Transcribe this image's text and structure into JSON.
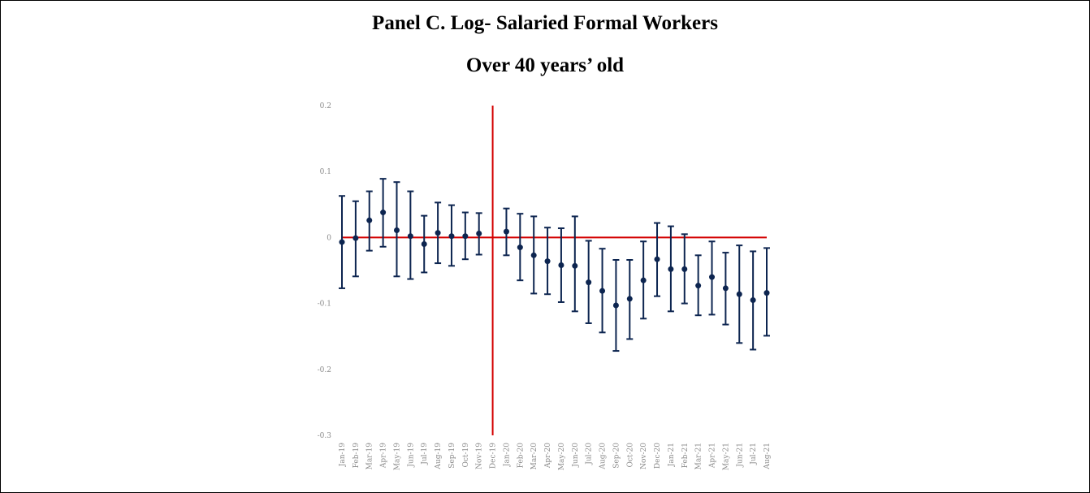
{
  "chart_data": {
    "type": "errorbar",
    "title": "Panel C. Log- Salaried Formal Workers",
    "subtitle": "Over 40 years’ old",
    "categories": [
      "Jan-19",
      "Feb-19",
      "Mar-19",
      "Apr-19",
      "May-19",
      "Jun-19",
      "Jul-19",
      "Aug-19",
      "Sep-19",
      "Oct-19",
      "Nov-19",
      "Dec-19",
      "Jan-20",
      "Feb-20",
      "Mar-20",
      "Apr-20",
      "May-20",
      "Jun-20",
      "Jul-20",
      "Aug-20",
      "Sep-20",
      "Oct-20",
      "Nov-20",
      "Dec-20",
      "Jan-21",
      "Feb-21",
      "Mar-21",
      "Apr-21",
      "May-21",
      "Jun-21",
      "Jul-21",
      "Aug-21"
    ],
    "values": [
      -0.007,
      -0.001,
      0.026,
      0.038,
      0.011,
      0.002,
      -0.01,
      0.007,
      0.002,
      0.002,
      0.006,
      null,
      0.009,
      -0.015,
      -0.027,
      -0.036,
      -0.042,
      -0.043,
      -0.068,
      -0.081,
      -0.103,
      -0.093,
      -0.065,
      -0.033,
      -0.048,
      -0.048,
      -0.073,
      -0.06,
      -0.077,
      -0.086,
      -0.095,
      -0.084
    ],
    "lower": [
      -0.077,
      -0.059,
      -0.02,
      -0.014,
      -0.059,
      -0.063,
      -0.053,
      -0.039,
      -0.043,
      -0.033,
      -0.026,
      null,
      -0.027,
      -0.065,
      -0.085,
      -0.086,
      -0.098,
      -0.112,
      -0.13,
      -0.144,
      -0.172,
      -0.154,
      -0.123,
      -0.089,
      -0.112,
      -0.1,
      -0.118,
      -0.117,
      -0.132,
      -0.16,
      -0.17,
      -0.149
    ],
    "upper": [
      0.063,
      0.055,
      0.07,
      0.089,
      0.084,
      0.07,
      0.033,
      0.053,
      0.049,
      0.038,
      0.037,
      null,
      0.044,
      0.036,
      0.032,
      0.015,
      0.014,
      0.032,
      -0.005,
      -0.017,
      -0.034,
      -0.034,
      -0.006,
      0.022,
      0.017,
      0.005,
      -0.027,
      -0.006,
      -0.023,
      -0.012,
      -0.021,
      -0.016
    ],
    "color": "#0d2550",
    "ylim": [
      -0.3,
      0.2
    ],
    "yticks": [
      0.2,
      0.1,
      0,
      -0.1,
      -0.2,
      -0.3
    ],
    "hline": 0,
    "vline": "Dec-19",
    "reference_color": "#d40000"
  }
}
